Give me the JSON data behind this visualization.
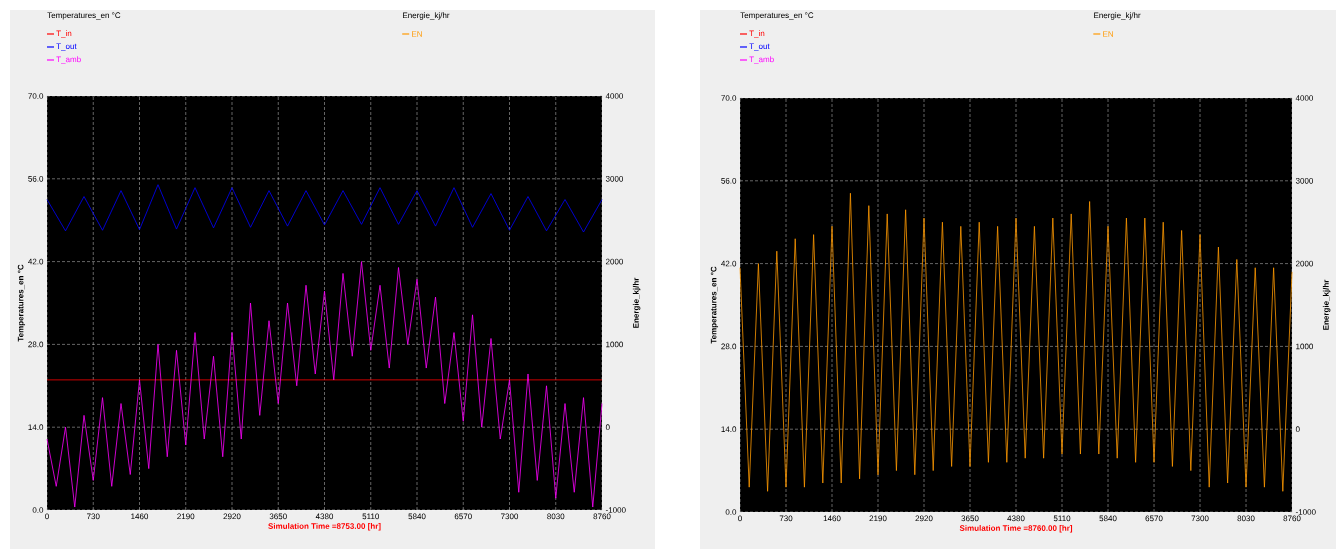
{
  "chart_data": [
    {
      "type": "line",
      "xlabel": "Simulation Time =8753.00 [hr]",
      "ylabel": "Temperatures_en °C",
      "y2label": "Energie_kj/hr",
      "legend_title": "Temperatures_en °C",
      "annotations": [
        "Energie_kj/hr"
      ],
      "legend": "top left",
      "grid": true,
      "xlim": [
        0,
        8760
      ],
      "xticks": [
        0,
        730,
        1460,
        2190,
        2920,
        3650,
        4380,
        5110,
        5840,
        6570,
        7300,
        8030,
        8760
      ],
      "ylim": [
        0,
        70
      ],
      "yticks": [
        {
          "value": 0,
          "label": "0.0"
        },
        {
          "value": 14,
          "label": "14.0"
        },
        {
          "value": 28,
          "label": "28.0"
        },
        {
          "value": 42,
          "label": "42.0"
        },
        {
          "value": 56,
          "label": "56.0"
        },
        {
          "value": 70,
          "label": "70.0"
        }
      ],
      "y2lim": [
        -1000,
        4000
      ],
      "y2ticks": [
        -1000,
        0,
        1000,
        2000,
        3000,
        4000
      ],
      "series": [
        {
          "name": "T_in",
          "color": "#ff0000",
          "x": [
            0,
            8760
          ],
          "values": [
            22,
            22
          ]
        },
        {
          "name": "T_out",
          "color": "#0000ff",
          "x": [
            0,
            292,
            584,
            876,
            1168,
            1460,
            1752,
            2044,
            2336,
            2628,
            2920,
            3212,
            3504,
            3796,
            4088,
            4380,
            4672,
            4964,
            5256,
            5548,
            5840,
            6132,
            6424,
            6716,
            7008,
            7300,
            7592,
            7884,
            8176,
            8468,
            8760
          ],
          "values": [
            52.5,
            47.2,
            53,
            47.3,
            54,
            47.4,
            55,
            47.5,
            54.5,
            47.7,
            54.5,
            47.8,
            54,
            48,
            54,
            48.2,
            54,
            48.3,
            54.5,
            48.3,
            54,
            48,
            54.5,
            47.8,
            53.5,
            47.3,
            53,
            47.2,
            52.5,
            47,
            52.5
          ]
        },
        {
          "name": "T_amb",
          "color": "#ff00ff",
          "x": [
            0,
            146,
            292,
            438,
            584,
            730,
            876,
            1022,
            1168,
            1314,
            1460,
            1606,
            1752,
            1898,
            2044,
            2190,
            2336,
            2482,
            2628,
            2774,
            2920,
            3066,
            3212,
            3358,
            3504,
            3650,
            3796,
            3942,
            4088,
            4234,
            4380,
            4526,
            4672,
            4818,
            4964,
            5110,
            5256,
            5402,
            5548,
            5694,
            5840,
            5986,
            6132,
            6278,
            6424,
            6570,
            6716,
            6862,
            7008,
            7154,
            7300,
            7446,
            7592,
            7738,
            7884,
            8030,
            8176,
            8322,
            8468,
            8614,
            8760
          ],
          "values": [
            12,
            4,
            14,
            0.5,
            16,
            5,
            19,
            4,
            18,
            6,
            22,
            7,
            28,
            9,
            27,
            11,
            30,
            12,
            26,
            9,
            30,
            12,
            35,
            16,
            32,
            18,
            35,
            21,
            38,
            23,
            37,
            22,
            40,
            26,
            42,
            27,
            38,
            24,
            41,
            28,
            39,
            24,
            36,
            18,
            30,
            15,
            33,
            14,
            29,
            12,
            22,
            3,
            23,
            5,
            21,
            2,
            18,
            3,
            19,
            0.5,
            18
          ]
        },
        {
          "name": "EN",
          "color": "#ff9900",
          "axis": "y2"
        }
      ]
    },
    {
      "type": "line",
      "xlabel": "Simulation Time =8760.00 [hr]",
      "ylabel": "Temperatures_en °C",
      "y2label": "Energie_kj/hr",
      "legend_title": "Temperatures_en °C",
      "annotations": [
        "Energie_kj/hr"
      ],
      "legend": "top left",
      "grid": true,
      "xlim": [
        0,
        8760
      ],
      "xticks": [
        0,
        730,
        1460,
        2190,
        2920,
        3650,
        4380,
        5110,
        5840,
        6570,
        7300,
        8030,
        8760
      ],
      "ylim": [
        0,
        70
      ],
      "yticks": [
        {
          "value": 0,
          "label": "0.0"
        },
        {
          "value": 14,
          "label": "14.0"
        },
        {
          "value": 28,
          "label": "28.0"
        },
        {
          "value": 42,
          "label": "42.0"
        },
        {
          "value": 56,
          "label": "56.0"
        },
        {
          "value": 70,
          "label": "70.0"
        }
      ],
      "y2lim": [
        -1000,
        4000
      ],
      "y2ticks": [
        -1000,
        0,
        1000,
        2000,
        3000,
        4000
      ],
      "series": [
        {
          "name": "T_in",
          "color": "#ff0000"
        },
        {
          "name": "T_out",
          "color": "#0000ff"
        },
        {
          "name": "T_amb",
          "color": "#ff00ff"
        },
        {
          "name": "EN",
          "color": "#ff9900",
          "axis": "y2",
          "x": [
            0,
            146,
            292,
            438,
            584,
            730,
            876,
            1022,
            1168,
            1314,
            1460,
            1606,
            1752,
            1898,
            2044,
            2190,
            2336,
            2482,
            2628,
            2774,
            2920,
            3066,
            3212,
            3358,
            3504,
            3650,
            3796,
            3942,
            4088,
            4234,
            4380,
            4526,
            4672,
            4818,
            4964,
            5110,
            5256,
            5402,
            5548,
            5694,
            5840,
            5986,
            6132,
            6278,
            6424,
            6570,
            6716,
            6862,
            7008,
            7154,
            7300,
            7446,
            7592,
            7738,
            7884,
            8030,
            8176,
            8322,
            8468,
            8614,
            8760
          ],
          "values": [
            1950,
            -700,
            2000,
            -750,
            2150,
            -700,
            2300,
            -700,
            2350,
            -650,
            2450,
            -650,
            2850,
            -600,
            2700,
            -550,
            2600,
            -500,
            2650,
            -550,
            2550,
            -500,
            2500,
            -450,
            2450,
            -450,
            2500,
            -400,
            2450,
            -400,
            2550,
            -350,
            2450,
            -350,
            2550,
            -300,
            2600,
            -300,
            2750,
            -300,
            2450,
            -350,
            2550,
            -400,
            2550,
            -400,
            2500,
            -450,
            2400,
            -500,
            2350,
            -700,
            2200,
            -650,
            2050,
            -700,
            1950,
            -700,
            1950,
            -750,
            1900
          ]
        }
      ]
    }
  ]
}
